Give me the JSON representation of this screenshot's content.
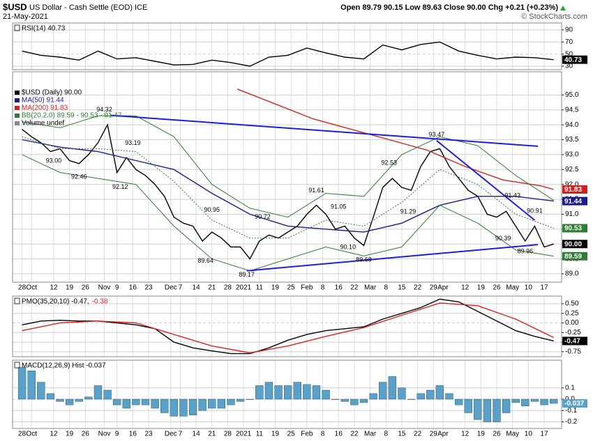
{
  "header": {
    "symbol": "$USD",
    "name": "US Dollar - Cash Settle (EOD) ICE",
    "date": "21-May-2021",
    "quote": "Open 89.79 90.15 Low 89.63 Close 90.00 Chg +0.21 (+0.23%)",
    "watermark": "© StockCharts.com"
  },
  "chart_data": [
    {
      "type": "line",
      "title": "RSI(14) 40.73",
      "ylim": [
        24.2,
        101.5
      ],
      "yticks": [
        90,
        70,
        50,
        30
      ],
      "xlim": [
        -3,
        170.5
      ],
      "series": [
        {
          "color": "#000000",
          "tag": "40.73",
          "x": [
            0,
            6,
            12,
            18,
            24,
            30,
            36,
            42,
            48,
            54,
            60,
            66,
            72,
            78,
            84,
            90,
            96,
            102,
            108,
            114,
            120,
            126,
            132,
            138,
            144,
            150,
            156,
            162,
            168
          ],
          "values": [
            55,
            48,
            45,
            40,
            55,
            42,
            44,
            38,
            32,
            33,
            40,
            36,
            30,
            45,
            48,
            60,
            52,
            45,
            42,
            65,
            57,
            66,
            70,
            55,
            48,
            42,
            45,
            44,
            40.73
          ]
        }
      ]
    },
    {
      "type": "line",
      "ylim": [
        88.72,
        95.78
      ],
      "xlim": [
        -3,
        170.5
      ],
      "legend": "top-left",
      "extra_legend": "Volume undef",
      "yticks": [
        {
          "value": 95,
          "label": "95.0"
        },
        {
          "value": 94.5,
          "label": "94.5"
        },
        {
          "value": 94,
          "label": "94.0"
        },
        {
          "value": 93.5,
          "label": "93.5"
        },
        {
          "value": 93,
          "label": "93.0"
        },
        {
          "value": 92.5,
          "label": "92.5"
        },
        {
          "value": 92,
          "label": "92.0"
        },
        {
          "value": 91.5,
          "label": "91.5"
        },
        {
          "value": 91,
          "label": "91.0"
        },
        {
          "value": 90.5,
          "label": "90.5"
        },
        {
          "value": 90,
          "label": "90.0"
        },
        {
          "value": 89.5,
          "label": "89.5"
        },
        {
          "value": 89,
          "label": "89.0"
        }
      ],
      "xticks": [
        {
          "value": 0,
          "label": "28"
        },
        {
          "value": 3,
          "label": "Oct"
        },
        {
          "value": 10,
          "label": "12"
        },
        {
          "value": 15,
          "label": "19"
        },
        {
          "value": 20,
          "label": "26"
        },
        {
          "value": 26,
          "label": "Nov"
        },
        {
          "value": 30,
          "label": "9"
        },
        {
          "value": 35,
          "label": "16"
        },
        {
          "value": 40,
          "label": "23"
        },
        {
          "value": 47,
          "label": "Dec"
        },
        {
          "value": 50,
          "label": "7"
        },
        {
          "value": 55,
          "label": "14"
        },
        {
          "value": 60,
          "label": "21"
        },
        {
          "value": 65,
          "label": "28"
        },
        {
          "value": 70,
          "label": "2021"
        },
        {
          "value": 75,
          "label": "11"
        },
        {
          "value": 80,
          "label": "19"
        },
        {
          "value": 85,
          "label": "25"
        },
        {
          "value": 90,
          "label": "Feb"
        },
        {
          "value": 95,
          "label": "8"
        },
        {
          "value": 100,
          "label": "16"
        },
        {
          "value": 105,
          "label": "22"
        },
        {
          "value": 110,
          "label": "Mar"
        },
        {
          "value": 115,
          "label": "8"
        },
        {
          "value": 120,
          "label": "15"
        },
        {
          "value": 125,
          "label": "22"
        },
        {
          "value": 130,
          "label": "29"
        },
        {
          "value": 133,
          "label": "Apr"
        },
        {
          "value": 140,
          "label": "12"
        },
        {
          "value": 145,
          "label": "19"
        },
        {
          "value": 150,
          "label": "26"
        },
        {
          "value": 155,
          "label": "May"
        },
        {
          "value": 160,
          "label": "10"
        },
        {
          "value": 165,
          "label": "17"
        }
      ],
      "series": [
        {
          "name": "$USD (Daily) 90.00",
          "color": "#000000",
          "tag": "90.00",
          "x": [
            0,
            3,
            6,
            9,
            12,
            15,
            18,
            21,
            24,
            27,
            30,
            33,
            36,
            39,
            42,
            45,
            48,
            51,
            54,
            57,
            60,
            63,
            66,
            69,
            72,
            75,
            78,
            81,
            84,
            87,
            90,
            93,
            96,
            99,
            102,
            105,
            108,
            111,
            114,
            117,
            120,
            123,
            126,
            129,
            132,
            135,
            138,
            141,
            144,
            147,
            150,
            153,
            156,
            159,
            162,
            165,
            168
          ],
          "values": [
            93.85,
            93.6,
            93.4,
            93.1,
            93.2,
            92.8,
            92.7,
            93.0,
            93.4,
            94.0,
            92.4,
            92.9,
            92.5,
            92.3,
            92.0,
            91.6,
            90.9,
            90.7,
            90.6,
            90.1,
            90.4,
            90.2,
            89.9,
            89.9,
            89.5,
            90.1,
            90.3,
            90.2,
            90.4,
            90.6,
            91.0,
            91.3,
            91.0,
            90.5,
            90.6,
            90.2,
            89.95,
            90.9,
            91.9,
            92.2,
            91.9,
            91.8,
            92.6,
            93.1,
            93.2,
            92.6,
            92.2,
            91.8,
            91.6,
            91.0,
            90.9,
            91.1,
            90.6,
            90.1,
            90.6,
            89.9,
            90.0
          ]
        },
        {
          "name": "MA(50) 91.44",
          "color": "#1c1c8c",
          "tag": "91.44",
          "x": [
            0,
            12,
            24,
            36,
            48,
            60,
            72,
            84,
            96,
            108,
            120,
            132,
            144,
            156,
            168
          ],
          "values": [
            93.5,
            93.25,
            93.1,
            92.8,
            92.5,
            91.7,
            91.0,
            90.6,
            90.5,
            90.4,
            90.7,
            91.3,
            91.6,
            91.6,
            91.44
          ]
        },
        {
          "name": "MA(200) 91.83",
          "color": "#cc2222",
          "tag": "91.83",
          "x": [
            68,
            80,
            92,
            104,
            116,
            128,
            140,
            152,
            164,
            168
          ],
          "values": [
            95.2,
            94.7,
            94.2,
            93.85,
            93.5,
            93.15,
            92.6,
            92.15,
            91.95,
            91.83
          ]
        },
        {
          "name": "BB(20,2.0) 89.59 - 90.53 - 91.47",
          "color": "#2e7d32",
          "tag": "90.53",
          "lower_tag": "89.59",
          "x": [
            0,
            12,
            24,
            36,
            48,
            60,
            72,
            84,
            96,
            108,
            120,
            132,
            144,
            156,
            168
          ],
          "values": [
            93.6,
            93.2,
            93.2,
            93.1,
            92.1,
            90.8,
            90.2,
            90.2,
            90.8,
            90.6,
            91.4,
            92.5,
            92.0,
            91.0,
            90.53
          ],
          "upper": [
            94.1,
            93.9,
            94.3,
            94.3,
            93.6,
            92.0,
            91.2,
            90.9,
            91.7,
            91.6,
            93.0,
            93.6,
            93.3,
            92.3,
            91.47
          ],
          "lower": [
            93.0,
            92.4,
            92.2,
            92.0,
            90.6,
            89.5,
            89.1,
            89.5,
            89.9,
            89.6,
            89.9,
            91.3,
            90.7,
            89.8,
            89.59
          ]
        }
      ],
      "trendline_color": "#1e1edc",
      "trendlines": [
        {
          "x": [
            28,
            163
          ],
          "values": [
            94.32,
            93.28
          ]
        },
        {
          "x": [
            71,
            163
          ],
          "values": [
            89.1,
            89.98
          ]
        },
        {
          "x": [
            131,
            162
          ],
          "values": [
            93.47,
            90.8
          ]
        }
      ],
      "point_labels": [
        {
          "x": 26,
          "value": 94.32,
          "label": "94.32"
        },
        {
          "x": 10,
          "value": 93.0,
          "label": "93.00"
        },
        {
          "x": 18,
          "value": 92.46,
          "label": "92.46"
        },
        {
          "x": 31,
          "value": 92.12,
          "label": "92.12"
        },
        {
          "x": 35,
          "value": 93.19,
          "label": "93.19"
        },
        {
          "x": 58,
          "value": 89.64,
          "label": "89.64"
        },
        {
          "x": 60,
          "value": 90.95,
          "label": "90.95"
        },
        {
          "x": 71,
          "value": 89.17,
          "label": "89.17"
        },
        {
          "x": 76,
          "value": 90.72,
          "label": "90.72"
        },
        {
          "x": 93,
          "value": 91.61,
          "label": "91.61"
        },
        {
          "x": 100,
          "value": 91.05,
          "label": "91.05"
        },
        {
          "x": 103,
          "value": 90.1,
          "label": "90.10"
        },
        {
          "x": 108,
          "value": 89.68,
          "label": "89.68"
        },
        {
          "x": 116,
          "value": 92.53,
          "label": "92.53"
        },
        {
          "x": 122,
          "value": 91.29,
          "label": "91.29"
        },
        {
          "x": 131,
          "value": 93.47,
          "label": "93.47"
        },
        {
          "x": 155,
          "value": 91.43,
          "label": "91.43"
        },
        {
          "x": 162,
          "value": 90.91,
          "label": "90.91"
        },
        {
          "x": 152,
          "value": 90.39,
          "label": "90.39"
        },
        {
          "x": 159,
          "value": 89.96,
          "label": "89.96"
        }
      ]
    },
    {
      "type": "line",
      "legend": "inline",
      "ylim": [
        -0.88,
        0.7
      ],
      "xlim": [
        -3,
        170.5
      ],
      "yticks": [
        {
          "value": 0.5,
          "label": "0.50"
        },
        {
          "value": 0.25,
          "label": "0.25"
        },
        {
          "value": 0,
          "label": "0.00"
        },
        {
          "value": -0.25,
          "label": "-0.25"
        },
        {
          "value": -0.5,
          "label": "-0.50"
        },
        {
          "value": -0.75,
          "label": "-0.75"
        }
      ],
      "series": [
        {
          "name": "PMO(35,20,10) -0.47,",
          "color": "#000000",
          "tag": "-0.47",
          "x": [
            0,
            6,
            12,
            18,
            24,
            30,
            36,
            42,
            48,
            54,
            60,
            66,
            72,
            78,
            84,
            90,
            96,
            102,
            108,
            114,
            120,
            126,
            132,
            138,
            144,
            150,
            156,
            162,
            168
          ],
          "values": [
            -0.05,
            0.05,
            0.07,
            0.05,
            0.05,
            0.0,
            -0.05,
            -0.15,
            -0.5,
            -0.65,
            -0.73,
            -0.8,
            -0.8,
            -0.65,
            -0.45,
            -0.3,
            -0.2,
            -0.15,
            -0.1,
            0.1,
            0.25,
            0.4,
            0.62,
            0.55,
            0.3,
            0.05,
            -0.2,
            -0.35,
            -0.47
          ]
        },
        {
          "name": "-0.38",
          "color": "#dd2222",
          "x": [
            0,
            12,
            24,
            36,
            48,
            60,
            72,
            84,
            96,
            108,
            120,
            132,
            144,
            156,
            168
          ],
          "values": [
            -0.2,
            0.0,
            0.05,
            0.0,
            -0.3,
            -0.6,
            -0.78,
            -0.6,
            -0.35,
            -0.12,
            0.2,
            0.52,
            0.45,
            0.1,
            -0.38
          ]
        }
      ]
    },
    {
      "type": "bar",
      "title": "MACD(12,26,9) Hist -0.037",
      "ylim": [
        -0.258,
        0.344
      ],
      "xlim": [
        -3,
        170.5
      ],
      "yticks": [
        0.1,
        {
          "value": 0,
          "label": "0.0"
        },
        -0.1,
        -0.2
      ],
      "xticks": [
        {
          "value": 0,
          "label": "28"
        },
        {
          "value": 3,
          "label": "Oct"
        },
        {
          "value": 10,
          "label": "12"
        },
        {
          "value": 15,
          "label": "19"
        },
        {
          "value": 20,
          "label": "26"
        },
        {
          "value": 26,
          "label": "Nov"
        },
        {
          "value": 30,
          "label": "9"
        },
        {
          "value": 35,
          "label": "16"
        },
        {
          "value": 40,
          "label": "23"
        },
        {
          "value": 47,
          "label": "Dec"
        },
        {
          "value": 50,
          "label": "7"
        },
        {
          "value": 55,
          "label": "14"
        },
        {
          "value": 60,
          "label": "21"
        },
        {
          "value": 65,
          "label": "28"
        },
        {
          "value": 70,
          "label": "2021"
        },
        {
          "value": 75,
          "label": "11"
        },
        {
          "value": 80,
          "label": "19"
        },
        {
          "value": 85,
          "label": "25"
        },
        {
          "value": 90,
          "label": "Feb"
        },
        {
          "value": 95,
          "label": "8"
        },
        {
          "value": 100,
          "label": "16"
        },
        {
          "value": 105,
          "label": "22"
        },
        {
          "value": 110,
          "label": "Mar"
        },
        {
          "value": 115,
          "label": "8"
        },
        {
          "value": 120,
          "label": "15"
        },
        {
          "value": 125,
          "label": "22"
        },
        {
          "value": 130,
          "label": "29"
        },
        {
          "value": 133,
          "label": "Apr"
        },
        {
          "value": 140,
          "label": "12"
        },
        {
          "value": 145,
          "label": "19"
        },
        {
          "value": 150,
          "label": "26"
        },
        {
          "value": 155,
          "label": "May"
        },
        {
          "value": 160,
          "label": "10"
        },
        {
          "value": 165,
          "label": "17"
        }
      ],
      "series": [
        {
          "color": "#5aa1c9",
          "tag": "-0.037",
          "x": [
            0,
            3,
            6,
            9,
            12,
            15,
            18,
            21,
            24,
            27,
            30,
            33,
            36,
            39,
            42,
            45,
            48,
            51,
            54,
            57,
            60,
            63,
            66,
            69,
            72,
            75,
            78,
            81,
            84,
            87,
            90,
            93,
            96,
            99,
            102,
            105,
            108,
            111,
            114,
            117,
            120,
            123,
            126,
            129,
            132,
            135,
            138,
            141,
            144,
            147,
            150,
            153,
            156,
            159,
            162,
            165,
            168
          ],
          "values": [
            0.28,
            0.25,
            0.15,
            0.05,
            -0.02,
            -0.05,
            -0.02,
            0.02,
            0.12,
            0.08,
            -0.05,
            -0.08,
            -0.05,
            -0.05,
            -0.08,
            -0.12,
            -0.15,
            -0.15,
            -0.14,
            -0.1,
            -0.08,
            -0.08,
            -0.05,
            -0.02,
            0.0,
            0.12,
            0.15,
            0.12,
            0.12,
            0.15,
            0.13,
            0.12,
            0.08,
            0.0,
            -0.02,
            -0.05,
            -0.03,
            0.05,
            0.15,
            0.2,
            0.1,
            0.0,
            0.05,
            0.08,
            0.12,
            0.05,
            -0.05,
            -0.12,
            -0.18,
            -0.2,
            -0.2,
            -0.12,
            -0.03,
            -0.06,
            -0.02,
            -0.05,
            -0.037
          ]
        }
      ]
    }
  ]
}
